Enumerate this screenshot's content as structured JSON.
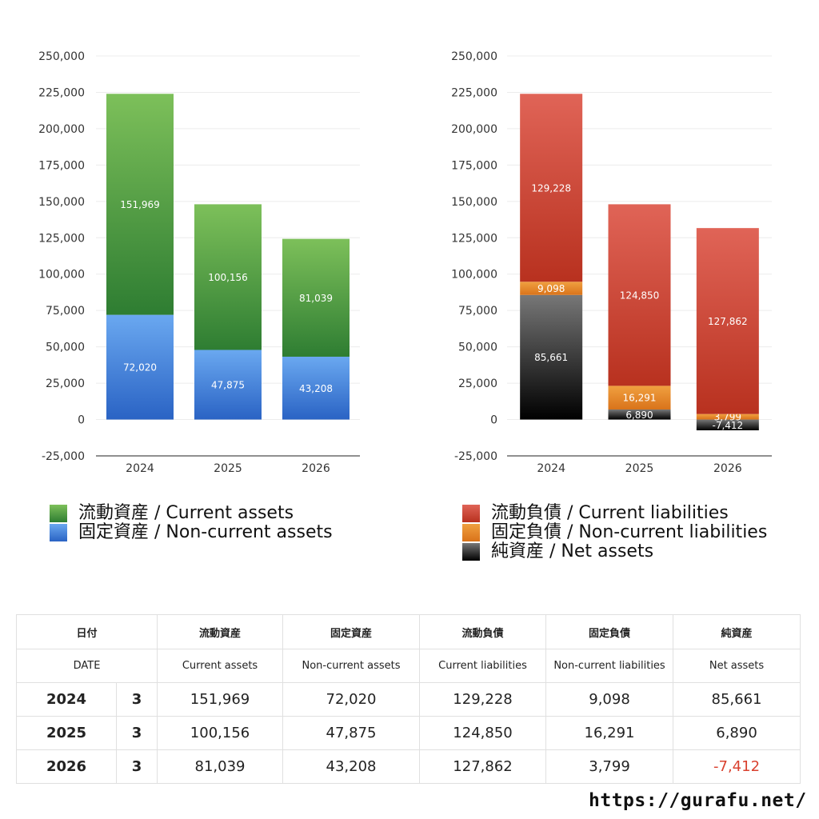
{
  "chart_data": [
    {
      "type": "bar",
      "stacked": true,
      "categories": [
        "2024",
        "2025",
        "2026"
      ],
      "ylim": [
        -25000,
        250000
      ],
      "yticks": [
        -25000,
        0,
        25000,
        50000,
        75000,
        100000,
        125000,
        150000,
        175000,
        200000,
        225000,
        250000
      ],
      "ytick_labels": [
        "-25,000",
        "0",
        "25,000",
        "50,000",
        "75,000",
        "100,000",
        "125,000",
        "150,000",
        "175,000",
        "200,000",
        "225,000",
        "250,000"
      ],
      "grid": true,
      "legend_position": "bottom",
      "series": [
        {
          "name": "固定資産 / Non-current assets",
          "values": [
            72020,
            47875,
            43208
          ],
          "labels": [
            "72,020",
            "47,875",
            "43,208"
          ],
          "color_top": "#6aa8f0",
          "color_bottom": "#2a63c4"
        },
        {
          "name": "流動資産 / Current assets",
          "values": [
            151969,
            100156,
            81039
          ],
          "labels": [
            "151,969",
            "100,156",
            "81,039"
          ],
          "color_top": "#7dc05a",
          "color_bottom": "#2e7d32"
        }
      ]
    },
    {
      "type": "bar",
      "stacked": true,
      "categories": [
        "2024",
        "2025",
        "2026"
      ],
      "ylim": [
        -25000,
        250000
      ],
      "yticks": [
        -25000,
        0,
        25000,
        50000,
        75000,
        100000,
        125000,
        150000,
        175000,
        200000,
        225000,
        250000
      ],
      "ytick_labels": [
        "-25,000",
        "0",
        "25,000",
        "50,000",
        "75,000",
        "100,000",
        "125,000",
        "150,000",
        "175,000",
        "200,000",
        "225,000",
        "250,000"
      ],
      "grid": true,
      "legend_position": "bottom",
      "series": [
        {
          "name": "純資産 / Net assets",
          "values": [
            85661,
            6890,
            -7412
          ],
          "labels": [
            "85,661",
            "6,890",
            "-7,412"
          ],
          "color_top": "#777777",
          "color_bottom": "#000000"
        },
        {
          "name": "固定負債 / Non-current liabilities",
          "values": [
            9098,
            16291,
            3799
          ],
          "labels": [
            "9,098",
            "16,291",
            "3,799"
          ],
          "color_top": "#f0a040",
          "color_bottom": "#d9731a"
        },
        {
          "name": "流動負債 / Current liabilities",
          "values": [
            129228,
            124850,
            127862
          ],
          "labels": [
            "129,228",
            "124,850",
            "127,862"
          ],
          "color_top": "#e06457",
          "color_bottom": "#b8311f"
        }
      ]
    }
  ],
  "legend_left": [
    {
      "label": "流動資産 / Current assets",
      "color": "#4a9a3a"
    },
    {
      "label": "固定資産 / Non-current assets",
      "color": "#3d7fd8"
    }
  ],
  "legend_right": [
    {
      "label": "流動負債 / Current liabilities",
      "color": "#d04a3a"
    },
    {
      "label": "固定負債 / Non-current liabilities",
      "color": "#e68a2e"
    },
    {
      "label": "純資産 / Net assets",
      "color": "#333333"
    }
  ],
  "table": {
    "header_jp": [
      "日付",
      "流動資産",
      "固定資産",
      "流動負債",
      "固定負債",
      "純資産"
    ],
    "header_en": [
      "DATE",
      "Current assets",
      "Non-current assets",
      "Current liabilities",
      "Non-current liabilities",
      "Net assets"
    ],
    "rows": [
      {
        "year": "2024",
        "month": "3",
        "current_assets": "151,969",
        "noncurrent_assets": "72,020",
        "current_liabilities": "129,228",
        "noncurrent_liabilities": "9,098",
        "net_assets": "85,661"
      },
      {
        "year": "2025",
        "month": "3",
        "current_assets": "100,156",
        "noncurrent_assets": "47,875",
        "current_liabilities": "124,850",
        "noncurrent_liabilities": "16,291",
        "net_assets": "6,890"
      },
      {
        "year": "2026",
        "month": "3",
        "current_assets": "81,039",
        "noncurrent_assets": "43,208",
        "current_liabilities": "127,862",
        "noncurrent_liabilities": "3,799",
        "net_assets": "-7,412"
      }
    ],
    "negative_color": "#d9412f"
  },
  "site": "https://gurafu.net/"
}
